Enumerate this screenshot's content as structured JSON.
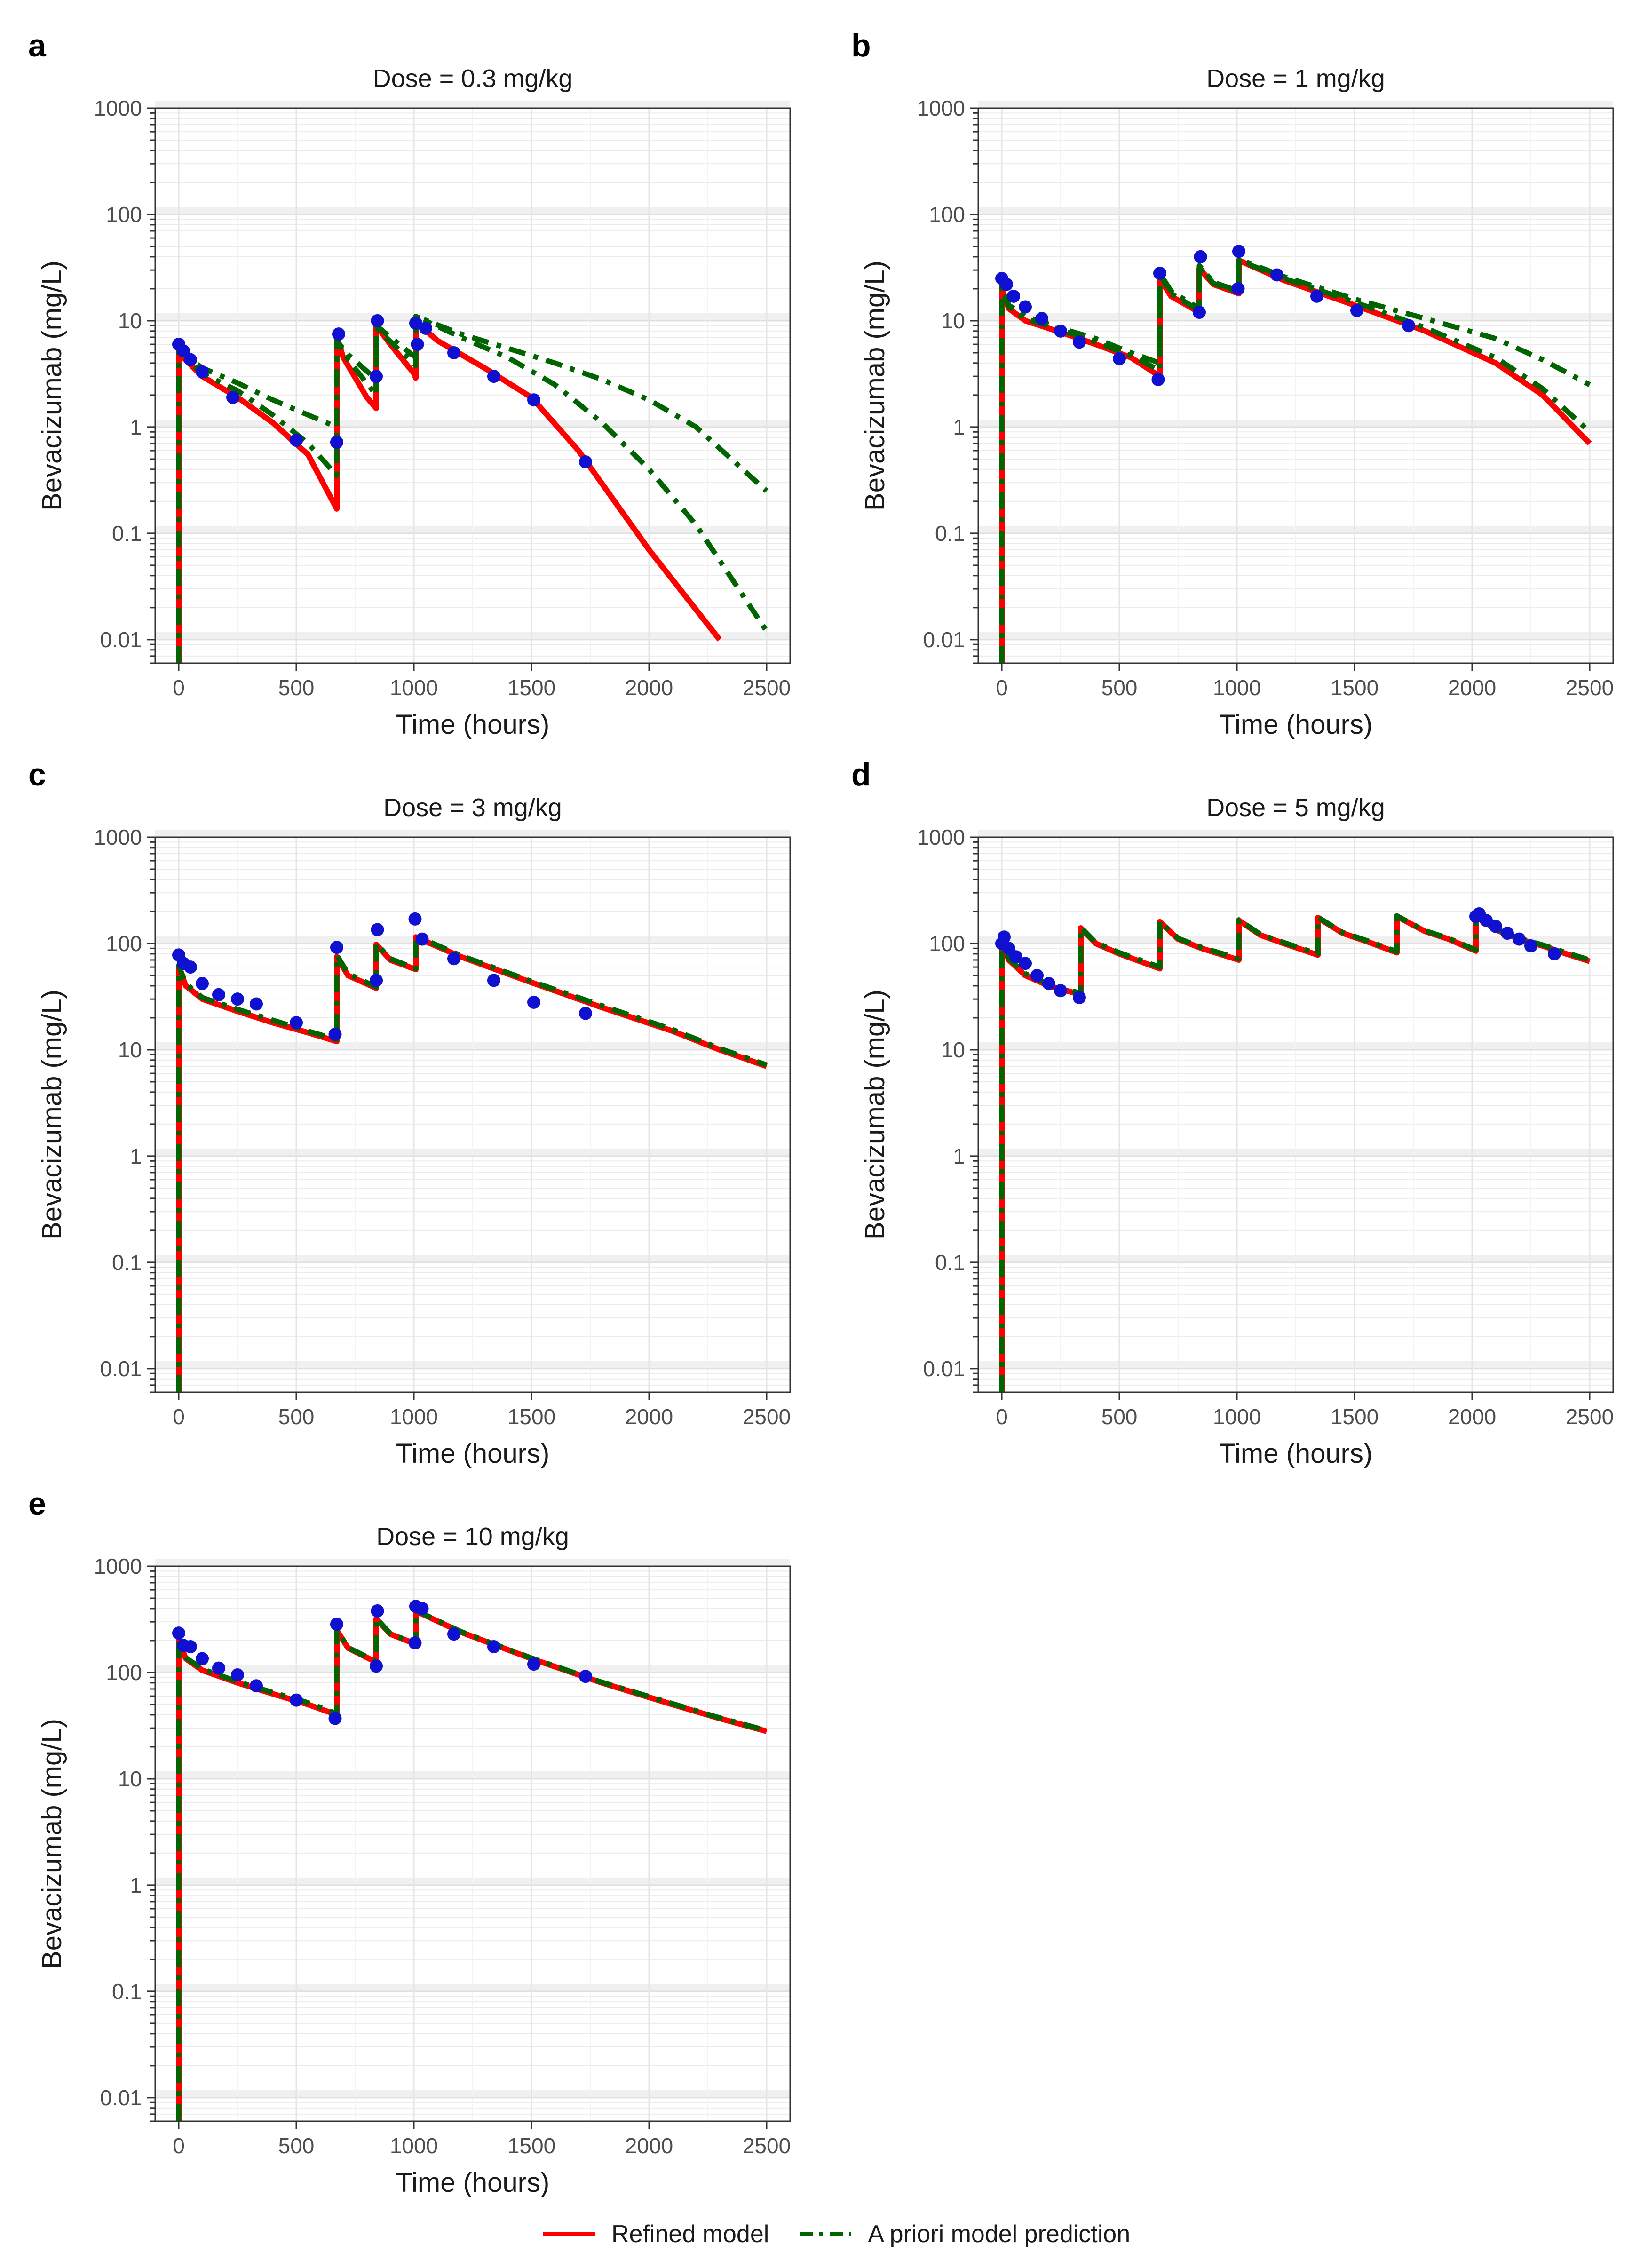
{
  "legend": {
    "refined_label": "Refined model",
    "apriori_label": "A priori model prediction",
    "refined_color": "#ff0000",
    "apriori_color": "#006400",
    "observed_color": "#1010d0"
  },
  "chart_data": [
    {
      "panel": "a",
      "type": "line",
      "title": "Dose = 0.3 mg/kg",
      "xlabel": "Time (hours)",
      "ylabel": "Bevacizumab (mg/L)",
      "yscale": "log",
      "xlim": [
        -100,
        2600
      ],
      "ylim": [
        0.006,
        1000
      ],
      "xticks": [
        0,
        500,
        1000,
        1500,
        2000,
        2500
      ],
      "xtick_labels": [
        "0",
        "500",
        "1000",
        "1500",
        "2000",
        "2500"
      ],
      "yticks": [
        0.01,
        0.1,
        1,
        10,
        100,
        1000
      ],
      "ytick_labels": [
        "0.01",
        "0.1",
        "1",
        "10",
        "100",
        "1000"
      ],
      "series": [
        {
          "name": "Refined model",
          "style": "solid",
          "x": [
            0,
            0,
            20,
            100,
            250,
            400,
            550,
            672,
            672,
            700,
            800,
            840,
            840,
            900,
            1000,
            1008,
            1008,
            1100,
            1300,
            1500,
            1700,
            2000,
            2300
          ],
          "y": [
            0.006,
            5.8,
            4.5,
            3.0,
            1.9,
            1.1,
            0.55,
            0.17,
            7.0,
            4.5,
            1.9,
            1.5,
            9.0,
            6.0,
            3.2,
            2.9,
            9.8,
            6.5,
            3.6,
            1.9,
            0.6,
            0.07,
            0.01
          ]
        },
        {
          "name": "A priori model prediction",
          "style": "dashdot",
          "x": [
            0,
            0,
            20,
            100,
            250,
            400,
            550,
            672,
            672,
            720,
            840,
            840,
            1008,
            1008,
            1200,
            1400,
            1600,
            1800,
            2000,
            2200,
            2500
          ],
          "y": [
            0.006,
            6.0,
            4.8,
            3.6,
            2.6,
            1.8,
            1.3,
            1.0,
            6.5,
            4.8,
            2.8,
            9.0,
            4.5,
            11.0,
            7.5,
            5.5,
            4.0,
            2.8,
            1.8,
            1.0,
            0.25
          ]
        },
        {
          "name": "A priori model prediction (alt)",
          "style": "dashdot",
          "x": [
            0,
            0,
            20,
            100,
            250,
            400,
            550,
            672,
            672,
            720,
            840,
            840,
            1008,
            1008,
            1200,
            1400,
            1600,
            1800,
            2000,
            2200,
            2500
          ],
          "y": [
            0.006,
            6.0,
            4.6,
            3.2,
            2.2,
            1.3,
            0.7,
            0.35,
            6.5,
            4.3,
            2.0,
            8.5,
            3.8,
            11.0,
            7.0,
            4.5,
            2.5,
            1.1,
            0.4,
            0.12,
            0.012
          ]
        },
        {
          "name": "Observed",
          "style": "points",
          "x": [
            0,
            20,
            50,
            100,
            230,
            500,
            672,
            680,
            840,
            845,
            1008,
            1015,
            1050,
            1170,
            1340,
            1510,
            1730
          ],
          "y": [
            6.0,
            5.2,
            4.3,
            3.3,
            1.9,
            0.75,
            0.72,
            7.5,
            3.0,
            10.0,
            9.5,
            6.0,
            8.5,
            5.0,
            3.0,
            1.8,
            0.47
          ]
        }
      ]
    },
    {
      "panel": "b",
      "type": "line",
      "title": "Dose = 1 mg/kg",
      "xlabel": "Time (hours)",
      "ylabel": "Bevacizumab (mg/L)",
      "yscale": "log",
      "xlim": [
        -100,
        2600
      ],
      "ylim": [
        0.006,
        1000
      ],
      "xticks": [
        0,
        500,
        1000,
        1500,
        2000,
        2500
      ],
      "xtick_labels": [
        "0",
        "500",
        "1000",
        "1500",
        "2000",
        "2500"
      ],
      "yticks": [
        0.01,
        0.1,
        1,
        10,
        100,
        1000
      ],
      "ytick_labels": [
        "0.01",
        "0.1",
        "1",
        "10",
        "100",
        "1000"
      ],
      "series": [
        {
          "name": "Refined model",
          "style": "solid",
          "x": [
            0,
            0,
            30,
            100,
            250,
            400,
            550,
            672,
            672,
            720,
            840,
            840,
            900,
            1008,
            1008,
            1200,
            1500,
            1800,
            2100,
            2300,
            2500
          ],
          "y": [
            0.006,
            20.0,
            13.0,
            10.0,
            7.8,
            6.0,
            4.5,
            3.0,
            25.0,
            17.0,
            12.0,
            31.0,
            22.0,
            18.0,
            37.0,
            24.0,
            14.0,
            8.0,
            4.0,
            2.0,
            0.7
          ]
        },
        {
          "name": "A priori model prediction",
          "style": "dashdot",
          "x": [
            0,
            0,
            30,
            100,
            250,
            400,
            550,
            672,
            672,
            720,
            840,
            840,
            900,
            1008,
            1008,
            1200,
            1500,
            1800,
            2100,
            2300,
            2500
          ],
          "y": [
            0.006,
            21.0,
            14.0,
            11.0,
            8.5,
            6.8,
            5.0,
            4.0,
            28.0,
            19.0,
            13.0,
            33.0,
            23.0,
            19.0,
            38.0,
            26.0,
            16.0,
            10.5,
            6.8,
            4.3,
            2.5
          ]
        },
        {
          "name": "A priori model prediction (alt)",
          "style": "dashdot",
          "x": [
            0,
            0,
            30,
            100,
            250,
            400,
            550,
            672,
            672,
            720,
            840,
            840,
            900,
            1008,
            1008,
            1200,
            1500,
            1800,
            2100,
            2300,
            2500
          ],
          "y": [
            0.006,
            21.0,
            13.5,
            10.5,
            8.2,
            6.3,
            4.7,
            3.4,
            27.0,
            18.0,
            12.5,
            32.0,
            22.5,
            18.5,
            37.0,
            25.0,
            15.0,
            8.6,
            4.5,
            2.3,
            0.9
          ]
        },
        {
          "name": "Observed",
          "style": "points",
          "x": [
            0,
            20,
            50,
            100,
            170,
            250,
            330,
            500,
            665,
            672,
            840,
            845,
            1005,
            1008,
            1170,
            1340,
            1510,
            1730
          ],
          "y": [
            25.0,
            22.0,
            17.0,
            13.5,
            10.5,
            8.0,
            6.3,
            4.4,
            2.8,
            28.0,
            12.0,
            40.0,
            20.0,
            45.0,
            27.0,
            17.0,
            12.5,
            9.0
          ]
        }
      ]
    },
    {
      "panel": "c",
      "type": "line",
      "title": "Dose = 3 mg/kg",
      "xlabel": "Time (hours)",
      "ylabel": "Bevacizumab (mg/L)",
      "yscale": "log",
      "xlim": [
        -100,
        2600
      ],
      "ylim": [
        0.006,
        1000
      ],
      "xticks": [
        0,
        500,
        1000,
        1500,
        2000,
        2500
      ],
      "xtick_labels": [
        "0",
        "500",
        "1000",
        "1500",
        "2000",
        "2500"
      ],
      "yticks": [
        0.01,
        0.1,
        1,
        10,
        100,
        1000
      ],
      "ytick_labels": [
        "0.01",
        "0.1",
        "1",
        "10",
        "100",
        "1000"
      ],
      "series": [
        {
          "name": "Refined model",
          "style": "solid",
          "x": [
            0,
            0,
            30,
            100,
            250,
            400,
            550,
            672,
            672,
            720,
            840,
            840,
            900,
            1008,
            1008,
            1200,
            1500,
            1800,
            2100,
            2300,
            2500
          ],
          "y": [
            0.006,
            60.0,
            40.0,
            30.0,
            23.0,
            18.0,
            14.5,
            12.0,
            75.0,
            50.0,
            38.0,
            98.0,
            70.0,
            57.0,
            115.0,
            75.0,
            43.0,
            25.0,
            15.0,
            10.0,
            7.0
          ]
        },
        {
          "name": "A priori model prediction",
          "style": "dashdot",
          "x": [
            0,
            0,
            30,
            100,
            250,
            400,
            550,
            672,
            672,
            720,
            840,
            840,
            900,
            1008,
            1008,
            1200,
            1500,
            1800,
            2100,
            2300,
            2500
          ],
          "y": [
            0.006,
            62.0,
            42.0,
            31.0,
            24.0,
            19.0,
            15.0,
            12.5,
            78.0,
            52.0,
            39.0,
            100.0,
            72.0,
            58.0,
            118.0,
            77.0,
            44.0,
            26.0,
            15.5,
            10.3,
            7.2
          ]
        },
        {
          "name": "Observed",
          "style": "points",
          "x": [
            0,
            20,
            50,
            100,
            170,
            250,
            330,
            500,
            665,
            672,
            840,
            845,
            1005,
            1035,
            1170,
            1340,
            1510,
            1730
          ],
          "y": [
            78.0,
            65.0,
            60.0,
            42.0,
            33.0,
            30.0,
            27.0,
            18.0,
            14.0,
            92.0,
            45.0,
            135.0,
            170.0,
            110.0,
            72.0,
            45.0,
            28.0,
            22.0
          ]
        }
      ]
    },
    {
      "panel": "d",
      "type": "line",
      "title": "Dose = 5 mg/kg",
      "xlabel": "Time (hours)",
      "ylabel": "Bevacizumab (mg/L)",
      "yscale": "log",
      "xlim": [
        -100,
        2600
      ],
      "ylim": [
        0.006,
        1000
      ],
      "xticks": [
        0,
        500,
        1000,
        1500,
        2000,
        2500
      ],
      "xtick_labels": [
        "0",
        "500",
        "1000",
        "1500",
        "2000",
        "2500"
      ],
      "yticks": [
        0.01,
        0.1,
        1,
        10,
        100,
        1000
      ],
      "ytick_labels": [
        "0.01",
        "0.1",
        "1",
        "10",
        "100",
        "1000"
      ],
      "series": [
        {
          "name": "Refined model",
          "style": "solid",
          "x": [
            0,
            0,
            30,
            100,
            200,
            336,
            336,
            400,
            500,
            672,
            672,
            750,
            850,
            1008,
            1008,
            1100,
            1200,
            1344,
            1344,
            1450,
            1550,
            1680,
            1680,
            1800,
            1900,
            2016,
            2016,
            2100,
            2200,
            2300,
            2400,
            2500
          ],
          "y": [
            0.006,
            100.0,
            70.0,
            50.0,
            40.0,
            33.0,
            140.0,
            100.0,
            80.0,
            58.0,
            160.0,
            110.0,
            90.0,
            70.0,
            165.0,
            120.0,
            100.0,
            78.0,
            175.0,
            125.0,
            105.0,
            82.0,
            180.0,
            130.0,
            110.0,
            85.0,
            185.0,
            135.0,
            110.0,
            95.0,
            80.0,
            68.0
          ]
        },
        {
          "name": "A priori model prediction",
          "style": "dashdot",
          "x": [
            0,
            0,
            30,
            100,
            200,
            336,
            336,
            400,
            500,
            672,
            672,
            750,
            850,
            1008,
            1008,
            1100,
            1200,
            1344,
            1344,
            1450,
            1550,
            1680,
            1680,
            1800,
            1900,
            2016,
            2016,
            2100,
            2200,
            2300,
            2400,
            2500
          ],
          "y": [
            0.006,
            102.0,
            72.0,
            52.0,
            41.0,
            34.0,
            142.0,
            102.0,
            82.0,
            60.0,
            162.0,
            112.0,
            92.0,
            72.0,
            167.0,
            122.0,
            102.0,
            80.0,
            177.0,
            127.0,
            107.0,
            84.0,
            182.0,
            132.0,
            112.0,
            87.0,
            187.0,
            137.0,
            112.0,
            97.0,
            82.0,
            70.0
          ]
        },
        {
          "name": "Observed",
          "style": "points",
          "x": [
            0,
            10,
            30,
            60,
            100,
            150,
            200,
            250,
            330,
            2016,
            2030,
            2060,
            2100,
            2150,
            2200,
            2250,
            2350
          ],
          "y": [
            100.0,
            115.0,
            90.0,
            75.0,
            65.0,
            50.0,
            42.0,
            36.0,
            31.0,
            180.0,
            190.0,
            165.0,
            145.0,
            125.0,
            110.0,
            95.0,
            80.0
          ]
        }
      ]
    },
    {
      "panel": "e",
      "type": "line",
      "title": "Dose = 10 mg/kg",
      "xlabel": "Time (hours)",
      "ylabel": "Bevacizumab (mg/L)",
      "yscale": "log",
      "xlim": [
        -100,
        2600
      ],
      "ylim": [
        0.006,
        1000
      ],
      "xticks": [
        0,
        500,
        1000,
        1500,
        2000,
        2500
      ],
      "xtick_labels": [
        "0",
        "500",
        "1000",
        "1500",
        "2000",
        "2500"
      ],
      "yticks": [
        0.01,
        0.1,
        1,
        10,
        100,
        1000
      ],
      "ytick_labels": [
        "0.01",
        "0.1",
        "1",
        "10",
        "100",
        "1000"
      ],
      "series": [
        {
          "name": "Refined model",
          "style": "solid",
          "x": [
            0,
            0,
            30,
            100,
            250,
            400,
            550,
            672,
            672,
            720,
            840,
            840,
            900,
            1008,
            1008,
            1200,
            1500,
            1800,
            2100,
            2300,
            2500
          ],
          "y": [
            0.006,
            200.0,
            135.0,
            105.0,
            80.0,
            63.0,
            50.0,
            40.0,
            250.0,
            170.0,
            125.0,
            320.0,
            230.0,
            185.0,
            380.0,
            240.0,
            135.0,
            80.0,
            50.0,
            37.0,
            28.0
          ]
        },
        {
          "name": "A priori model prediction",
          "style": "dashdot",
          "x": [
            0,
            0,
            30,
            100,
            250,
            400,
            550,
            672,
            672,
            720,
            840,
            840,
            900,
            1008,
            1008,
            1200,
            1500,
            1800,
            2100,
            2300,
            2500
          ],
          "y": [
            0.006,
            205.0,
            138.0,
            108.0,
            82.0,
            65.0,
            52.0,
            41.0,
            255.0,
            172.0,
            127.0,
            325.0,
            232.0,
            187.0,
            385.0,
            243.0,
            137.0,
            81.0,
            51.0,
            37.5,
            28.5
          ]
        },
        {
          "name": "Observed",
          "style": "points",
          "x": [
            0,
            20,
            50,
            100,
            170,
            250,
            330,
            500,
            665,
            672,
            840,
            845,
            1005,
            1008,
            1035,
            1170,
            1340,
            1510,
            1730
          ],
          "y": [
            235.0,
            180.0,
            175.0,
            135.0,
            110.0,
            95.0,
            75.0,
            55.0,
            37.0,
            285.0,
            115.0,
            380.0,
            190.0,
            420.0,
            400.0,
            230.0,
            175.0,
            120.0,
            92.0
          ]
        }
      ]
    }
  ]
}
